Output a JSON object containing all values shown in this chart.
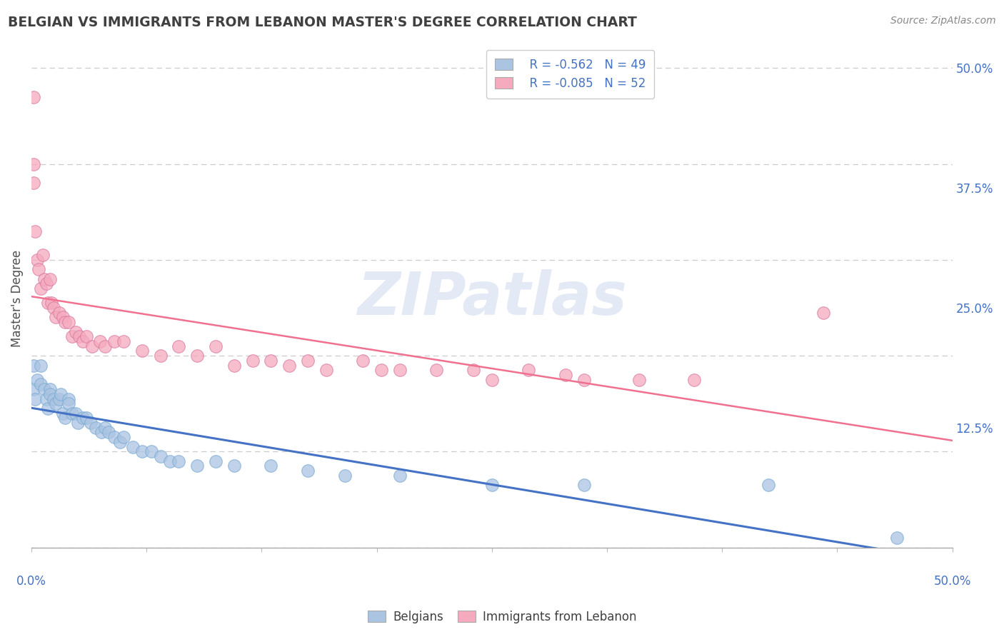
{
  "title": "BELGIAN VS IMMIGRANTS FROM LEBANON MASTER'S DEGREE CORRELATION CHART",
  "source": "Source: ZipAtlas.com",
  "ylabel": "Master's Degree",
  "legend_belgian_R": "R = -0.562",
  "legend_belgian_N": "N = 49",
  "legend_lebanon_R": "R = -0.085",
  "legend_lebanon_N": "N = 52",
  "legend_label_belgian": "Belgians",
  "legend_label_lebanon": "Immigrants from Lebanon",
  "xlim": [
    0.0,
    0.5
  ],
  "ylim": [
    0.0,
    0.52
  ],
  "belgian_color": "#aac4e2",
  "lebanon_color": "#f5aabe",
  "belgian_line_color": "#4472c4",
  "lebanon_line_color": "#f07090",
  "title_color": "#404040",
  "axis_color": "#4472c4",
  "belgian_x": [
    0.001,
    0.001,
    0.002,
    0.003,
    0.005,
    0.005,
    0.007,
    0.008,
    0.009,
    0.01,
    0.01,
    0.012,
    0.013,
    0.015,
    0.016,
    0.017,
    0.018,
    0.02,
    0.02,
    0.022,
    0.024,
    0.025,
    0.028,
    0.03,
    0.032,
    0.035,
    0.038,
    0.04,
    0.042,
    0.045,
    0.048,
    0.05,
    0.055,
    0.06,
    0.065,
    0.07,
    0.075,
    0.08,
    0.09,
    0.1,
    0.11,
    0.13,
    0.15,
    0.17,
    0.2,
    0.25,
    0.3,
    0.4,
    0.47
  ],
  "belgian_y": [
    0.19,
    0.165,
    0.155,
    0.175,
    0.19,
    0.17,
    0.165,
    0.155,
    0.145,
    0.165,
    0.16,
    0.155,
    0.15,
    0.155,
    0.16,
    0.14,
    0.135,
    0.155,
    0.15,
    0.14,
    0.14,
    0.13,
    0.135,
    0.135,
    0.13,
    0.125,
    0.12,
    0.125,
    0.12,
    0.115,
    0.11,
    0.115,
    0.105,
    0.1,
    0.1,
    0.095,
    0.09,
    0.09,
    0.085,
    0.09,
    0.085,
    0.085,
    0.08,
    0.075,
    0.075,
    0.065,
    0.065,
    0.065,
    0.01
  ],
  "lebanon_x": [
    0.001,
    0.001,
    0.001,
    0.002,
    0.003,
    0.004,
    0.005,
    0.006,
    0.007,
    0.008,
    0.009,
    0.01,
    0.011,
    0.012,
    0.013,
    0.015,
    0.017,
    0.018,
    0.02,
    0.022,
    0.024,
    0.026,
    0.028,
    0.03,
    0.033,
    0.037,
    0.04,
    0.045,
    0.05,
    0.06,
    0.07,
    0.08,
    0.09,
    0.1,
    0.11,
    0.12,
    0.13,
    0.14,
    0.15,
    0.16,
    0.18,
    0.19,
    0.2,
    0.22,
    0.24,
    0.25,
    0.27,
    0.29,
    0.3,
    0.33,
    0.36,
    0.43
  ],
  "lebanon_y": [
    0.47,
    0.4,
    0.38,
    0.33,
    0.3,
    0.29,
    0.27,
    0.305,
    0.28,
    0.275,
    0.255,
    0.28,
    0.255,
    0.25,
    0.24,
    0.245,
    0.24,
    0.235,
    0.235,
    0.22,
    0.225,
    0.22,
    0.215,
    0.22,
    0.21,
    0.215,
    0.21,
    0.215,
    0.215,
    0.205,
    0.2,
    0.21,
    0.2,
    0.21,
    0.19,
    0.195,
    0.195,
    0.19,
    0.195,
    0.185,
    0.195,
    0.185,
    0.185,
    0.185,
    0.185,
    0.175,
    0.185,
    0.18,
    0.175,
    0.175,
    0.175,
    0.245
  ]
}
